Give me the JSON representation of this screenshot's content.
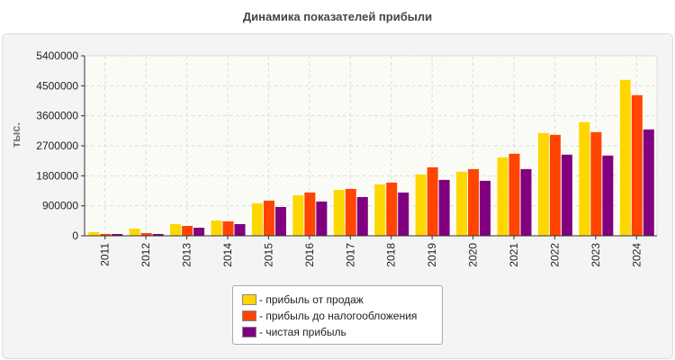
{
  "chart_data": {
    "type": "bar",
    "title": "Динамика показателей прибыли",
    "xlabel": "",
    "ylabel": "тыс.",
    "ylim": [
      0,
      5400000
    ],
    "yticks": [
      "0",
      "900000",
      "1800000",
      "2700000",
      "3600000",
      "4500000",
      "5400000"
    ],
    "grid": true,
    "legend_position": "bottom",
    "categories": [
      "2011",
      "2012",
      "2013",
      "2014",
      "2015",
      "2016",
      "2017",
      "2018",
      "2019",
      "2020",
      "2021",
      "2022",
      "2023",
      "2024"
    ],
    "series": [
      {
        "name": "- прибыль от продаж",
        "color": "#FFD700",
        "values": [
          108000,
          216000,
          352000,
          460000,
          974000,
          1217000,
          1379000,
          1542000,
          1839000,
          1920000,
          2353000,
          3083000,
          3408000,
          4679000
        ]
      },
      {
        "name": "- прибыль до налогообложения",
        "color": "#FF4500",
        "values": [
          54000,
          81000,
          297000,
          433000,
          1055000,
          1298000,
          1406000,
          1596000,
          2055000,
          2001000,
          2461000,
          3029000,
          3110000,
          4219000
        ]
      },
      {
        "name": "- чистая прибыль",
        "color": "#800080",
        "values": [
          54000,
          54000,
          243000,
          352000,
          865000,
          1028000,
          1163000,
          1298000,
          1677000,
          1650000,
          2001000,
          2434000,
          2407000,
          3191000
        ]
      }
    ]
  }
}
